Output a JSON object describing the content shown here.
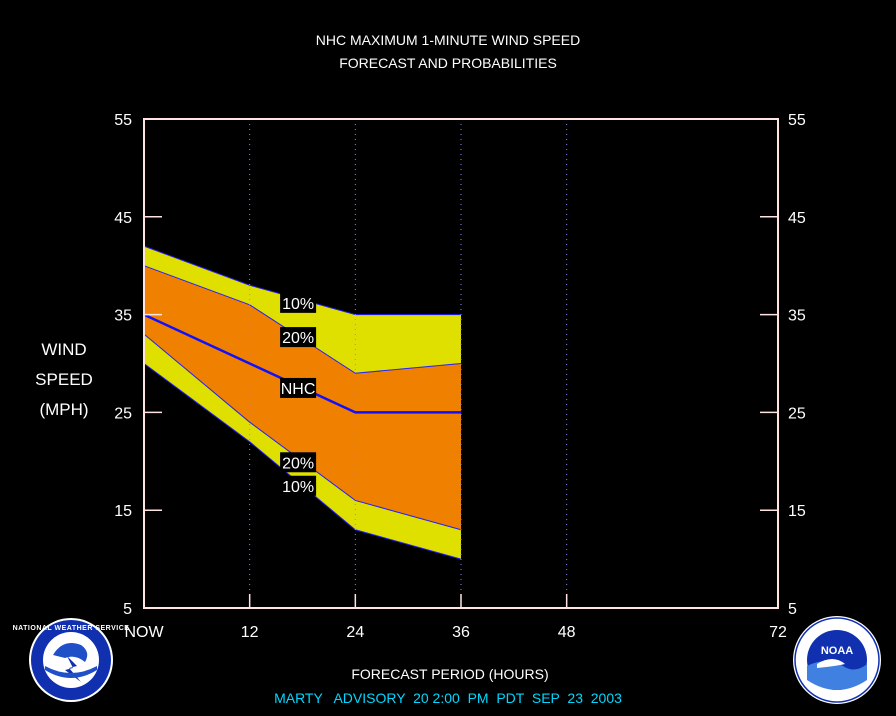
{
  "chart_data": {
    "type": "area",
    "title": "NHC MAXIMUM 1-MINUTE WIND SPEED",
    "subtitle": "FORECAST AND PROBABILITIES",
    "ylabel": [
      "WIND",
      "SPEED",
      "(MPH)"
    ],
    "xlabel": "FORECAST PERIOD (HOURS)",
    "footer": "MARTY   ADVISORY  20 2:00  PM  PDT  SEP  23  2003",
    "xlim": [
      0,
      72
    ],
    "ylim": [
      5,
      55
    ],
    "x_ticks": [
      {
        "value": 0,
        "label": "NOW"
      },
      {
        "value": 12,
        "label": "12"
      },
      {
        "value": 24,
        "label": "24"
      },
      {
        "value": 36,
        "label": "36"
      },
      {
        "value": 48,
        "label": "48"
      },
      {
        "value": 72,
        "label": "72"
      }
    ],
    "y_ticks": [
      {
        "value": 55,
        "label": "55"
      },
      {
        "value": 45,
        "label": "45"
      },
      {
        "value": 35,
        "label": "35"
      },
      {
        "value": 25,
        "label": "25"
      },
      {
        "value": 15,
        "label": "15"
      },
      {
        "value": 5,
        "label": "5"
      }
    ],
    "vertical_gridlines": [
      12,
      24,
      36,
      48
    ],
    "x": [
      0,
      12,
      24,
      36
    ],
    "bands": [
      {
        "name": "10%",
        "color": "#e0e000",
        "upper": [
          42,
          38,
          35,
          35
        ],
        "lower": [
          30,
          22,
          13,
          10
        ]
      },
      {
        "name": "20%",
        "color": "#f08000",
        "upper": [
          40,
          36,
          29,
          30
        ],
        "lower": [
          33,
          24,
          16,
          13
        ]
      }
    ],
    "series": [
      {
        "name": "NHC",
        "color": "#1010ff",
        "values": [
          35,
          30,
          25,
          25
        ]
      }
    ],
    "annotations": [
      {
        "text": "10%",
        "x": 17.5,
        "y": 36.2
      },
      {
        "text": "20%",
        "x": 17.5,
        "y": 32.7
      },
      {
        "text": "NHC",
        "x": 17.5,
        "y": 27.5
      },
      {
        "text": "20%",
        "x": 17.5,
        "y": 19.9
      },
      {
        "text": "10%",
        "x": 17.5,
        "y": 17.5
      }
    ]
  },
  "logos": {
    "nws": {
      "text": "NATIONAL WEATHER SERVICE"
    },
    "noaa": {
      "text": "NOAA"
    }
  },
  "colors": {
    "background": "#000000",
    "frame": "#ffe4e1",
    "text": "#ffffff",
    "footer": "#00d8ff",
    "grid": "#8888ff"
  }
}
